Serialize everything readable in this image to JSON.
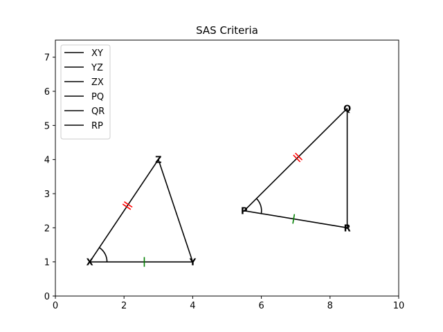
{
  "chart_data": {
    "type": "diagram",
    "title": "SAS Criteria",
    "xlim": [
      0,
      10
    ],
    "ylim": [
      0,
      7.5
    ],
    "xticks": [
      0,
      2,
      4,
      6,
      8,
      10
    ],
    "yticks": [
      0,
      1,
      2,
      3,
      4,
      5,
      6,
      7
    ],
    "xtick_labels": [
      "0",
      "2",
      "4",
      "6",
      "8",
      "10"
    ],
    "ytick_labels": [
      "0",
      "1",
      "2",
      "3",
      "4",
      "5",
      "6",
      "7"
    ],
    "grid": false,
    "legend_position": "upper-left",
    "points": [
      {
        "label": "X",
        "x": 1.0,
        "y": 1.0
      },
      {
        "label": "Y",
        "x": 4.0,
        "y": 1.0
      },
      {
        "label": "Z",
        "x": 3.0,
        "y": 4.0
      },
      {
        "label": "P",
        "x": 5.5,
        "y": 2.5
      },
      {
        "label": "Q",
        "x": 8.5,
        "y": 5.5
      },
      {
        "label": "R",
        "x": 8.5,
        "y": 2.0
      }
    ],
    "segments": [
      {
        "name": "XY",
        "from": "X",
        "to": "Y",
        "color": "#000000"
      },
      {
        "name": "YZ",
        "from": "Y",
        "to": "Z",
        "color": "#000000"
      },
      {
        "name": "ZX",
        "from": "Z",
        "to": "X",
        "color": "#000000"
      },
      {
        "name": "PQ",
        "from": "P",
        "to": "Q",
        "color": "#000000"
      },
      {
        "name": "QR",
        "from": "Q",
        "to": "R",
        "color": "#000000"
      },
      {
        "name": "RP",
        "from": "R",
        "to": "P",
        "color": "#000000"
      }
    ],
    "tick_marks": [
      {
        "segment": "XY",
        "t": 0.53,
        "count": 1,
        "color": "#008000"
      },
      {
        "segment": "RP",
        "t": 0.52,
        "count": 1,
        "color": "#008000"
      },
      {
        "segment": "ZX",
        "t": 0.45,
        "count": 2,
        "color": "#ff0000"
      },
      {
        "segment": "PQ",
        "t": 0.52,
        "count": 2,
        "color": "#ff0000"
      }
    ],
    "angle_arcs": [
      {
        "vertex": "X",
        "between": [
          "Y",
          "Z"
        ]
      },
      {
        "vertex": "P",
        "between": [
          "R",
          "Q"
        ]
      }
    ],
    "legend": [
      "XY",
      "YZ",
      "ZX",
      "PQ",
      "QR",
      "RP"
    ]
  }
}
